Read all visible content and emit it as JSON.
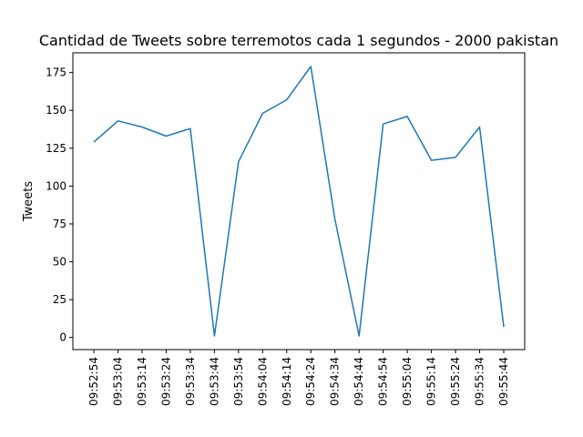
{
  "chart_data": {
    "type": "line",
    "title": "Cantidad de Tweets sobre terremotos cada 1 segundos - 2000 pakistan",
    "xlabel": "",
    "ylabel": "Tweets",
    "categories": [
      "09:52:54",
      "09:53:04",
      "09:53:14",
      "09:53:24",
      "09:53:34",
      "09:53:44",
      "09:53:54",
      "09:54:04",
      "09:54:14",
      "09:54:24",
      "09:54:34",
      "09:54:44",
      "09:54:54",
      "09:55:04",
      "09:55:14",
      "09:55:24",
      "09:55:34",
      "09:55:44"
    ],
    "values": [
      129,
      143,
      139,
      133,
      138,
      1,
      116,
      148,
      157,
      179,
      78,
      1,
      141,
      146,
      117,
      119,
      139,
      7
    ],
    "ylim": [
      -8,
      188
    ],
    "yticks": [
      0,
      25,
      50,
      75,
      100,
      125,
      150,
      175
    ],
    "grid": false,
    "line_color": "#1f77b4"
  }
}
